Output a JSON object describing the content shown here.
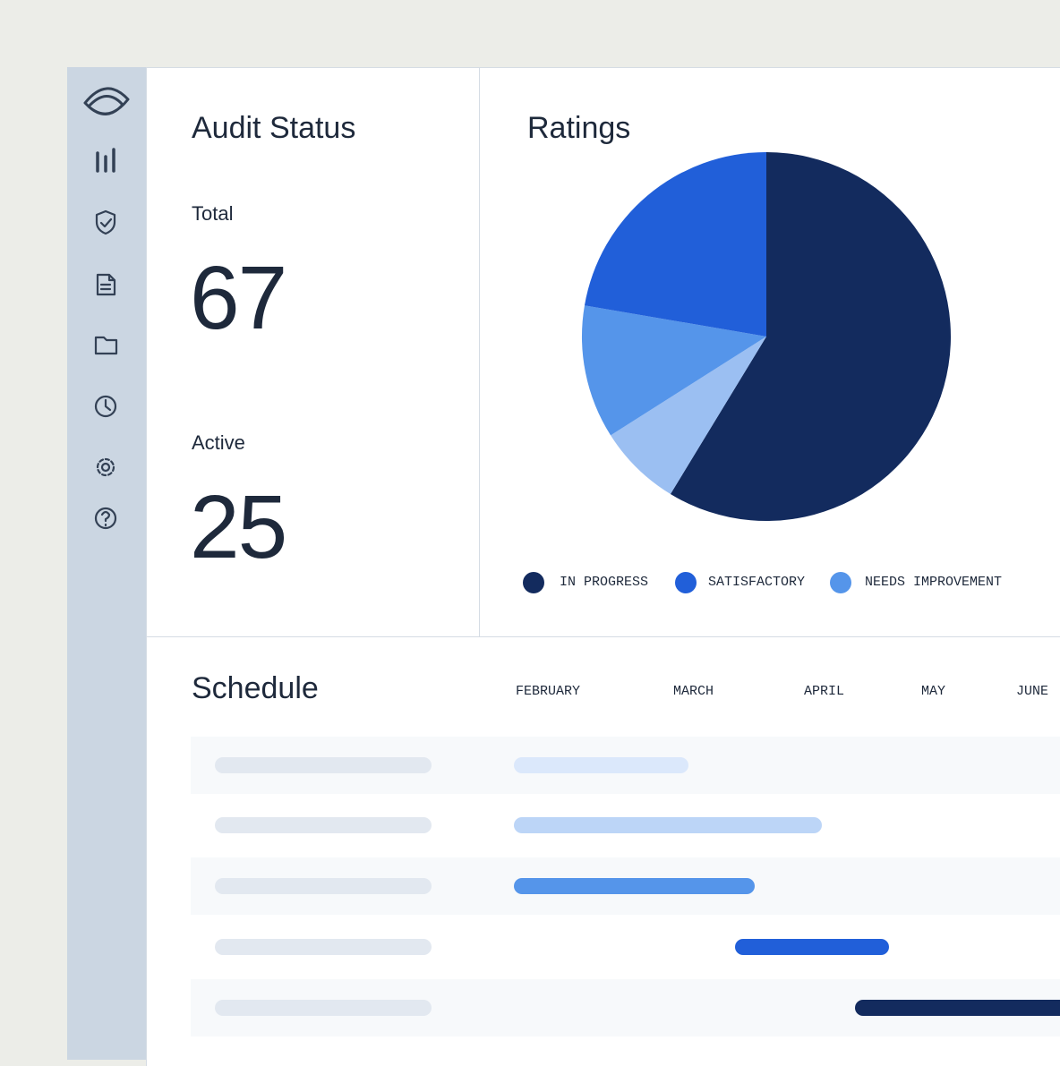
{
  "audit_status": {
    "title": "Audit Status",
    "total_label": "Total",
    "total": 67,
    "active_label": "Active",
    "active": 25
  },
  "chart_data": {
    "type": "pie",
    "title": "Ratings",
    "categories": [
      "IN PROGRESS",
      null,
      "NEEDS IMPROVEMENT",
      "SATISFACTORY"
    ],
    "values": [
      58.7,
      7.3,
      11.7,
      22.3
    ],
    "colors": [
      "#132b5e",
      "#9bbff2",
      "#5595ea",
      "#215fd9"
    ]
  },
  "schedule": {
    "title": "Schedule",
    "months": [
      "FEBRUARY",
      "MARCH",
      "APRIL",
      "MAY",
      "JUNE"
    ]
  }
}
